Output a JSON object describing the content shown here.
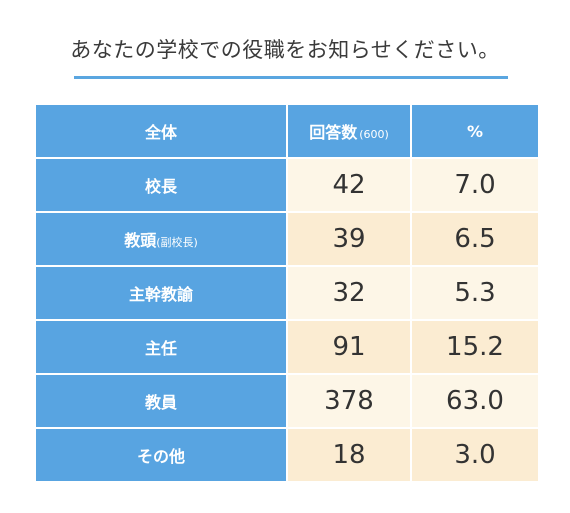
{
  "title": "あなたの学校での役職をお知らせください。",
  "colors": {
    "header_blue": "#58a4e1",
    "cell_light": "#fdf6e7",
    "cell_dark": "#fbecd2",
    "rule": "#5aa6e0"
  },
  "table": {
    "headers": {
      "col1": "全体",
      "col2": "回答数",
      "col2_sub": "(600)",
      "col3": "%"
    },
    "rows": [
      {
        "label": "校長",
        "label_sub": "",
        "count": "42",
        "pct": "7.0"
      },
      {
        "label": "教頭",
        "label_sub": "(副校長)",
        "count": "39",
        "pct": "6.5"
      },
      {
        "label": "主幹教諭",
        "label_sub": "",
        "count": "32",
        "pct": "5.3"
      },
      {
        "label": "主任",
        "label_sub": "",
        "count": "91",
        "pct": "15.2"
      },
      {
        "label": "教員",
        "label_sub": "",
        "count": "378",
        "pct": "63.0"
      },
      {
        "label": "その他",
        "label_sub": "",
        "count": "18",
        "pct": "3.0"
      }
    ]
  },
  "chart_data": {
    "type": "table",
    "title": "あなたの学校での役職をお知らせください。",
    "columns": [
      "全体",
      "回答数(600)",
      "%"
    ],
    "categories": [
      "校長",
      "教頭(副校長)",
      "主幹教諭",
      "主任",
      "教員",
      "その他"
    ],
    "series": [
      {
        "name": "回答数(600)",
        "values": [
          42,
          39,
          32,
          91,
          378,
          18
        ]
      },
      {
        "name": "%",
        "values": [
          7.0,
          6.5,
          5.3,
          15.2,
          63.0,
          3.0
        ]
      }
    ]
  }
}
